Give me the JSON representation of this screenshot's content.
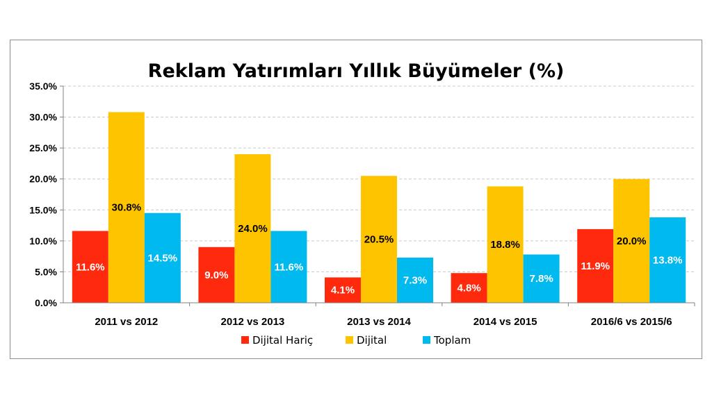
{
  "chart_data": {
    "type": "bar",
    "title": "Reklam Yatırımları Yıllık Büyümeler (%)",
    "xlabel": "",
    "ylabel": "",
    "categories": [
      "2011 vs 2012",
      "2012 vs 2013",
      "2013 vs 2014",
      "2014 vs 2015",
      "2016/6 vs 2015/6"
    ],
    "series": [
      {
        "name": "Dijital Hariç",
        "color": "#ff2a0e",
        "label_color": "#ffffff",
        "values": [
          11.6,
          9.0,
          4.1,
          4.8,
          11.9
        ],
        "labels": [
          "11.6%",
          "9.0%",
          "4.1%",
          "4.8%",
          "11.9%"
        ]
      },
      {
        "name": "Dijital",
        "color": "#ffc400",
        "label_color": "#000000",
        "values": [
          30.8,
          24.0,
          20.5,
          18.8,
          20.0
        ],
        "labels": [
          "30.8%",
          "24.0%",
          "20.5%",
          "18.8%",
          "20.0%"
        ]
      },
      {
        "name": "Toplam",
        "color": "#00b9ee",
        "label_color": "#ffffff",
        "values": [
          14.5,
          11.6,
          7.3,
          7.8,
          13.8
        ],
        "labels": [
          "14.5%",
          "11.6%",
          "7.3%",
          "7.8%",
          "13.8%"
        ]
      }
    ],
    "ylim": [
      0,
      35
    ],
    "yticks": [
      0,
      5,
      10,
      15,
      20,
      25,
      30,
      35
    ],
    "ytick_labels": [
      "0.0%",
      "5.0%",
      "10.0%",
      "15.0%",
      "20.0%",
      "25.0%",
      "30.0%",
      "35.0%"
    ],
    "grid": true,
    "legend_position": "bottom"
  }
}
